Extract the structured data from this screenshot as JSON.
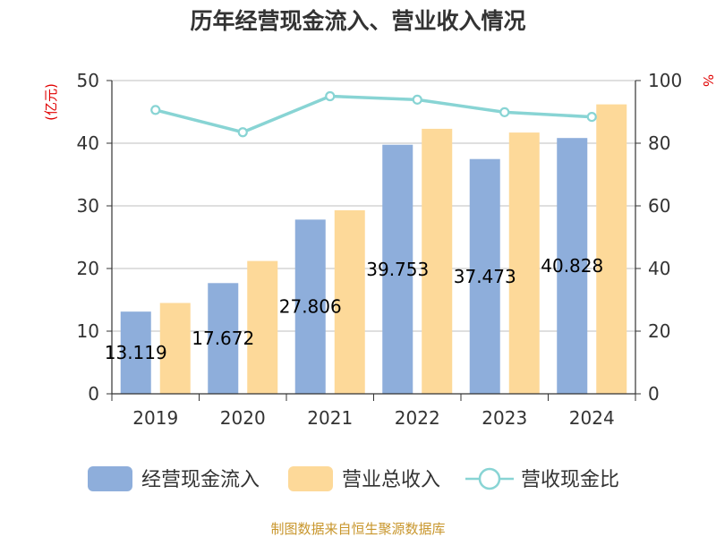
{
  "chart_data": {
    "type": "bar",
    "title": "历年经营现金流入、营业收入情况",
    "categories": [
      "2019",
      "2020",
      "2021",
      "2022",
      "2023",
      "2024"
    ],
    "series": [
      {
        "name": "经营现金流入",
        "type": "bar",
        "axis": "left",
        "color": "#8eaedb",
        "values": [
          13.119,
          17.672,
          27.806,
          39.753,
          37.473,
          40.828
        ],
        "data_labels": [
          "13.119",
          "17.672",
          "27.806",
          "39.753",
          "37.473",
          "40.828"
        ]
      },
      {
        "name": "营业总收入",
        "type": "bar",
        "axis": "left",
        "color": "#fdd999",
        "values": [
          14.5,
          21.2,
          29.3,
          42.3,
          41.7,
          46.2
        ]
      },
      {
        "name": "营收现金比",
        "type": "line",
        "axis": "right",
        "color": "#88d4d4",
        "values": [
          90.6,
          83.5,
          95.0,
          93.9,
          89.9,
          88.4
        ]
      }
    ],
    "y_left": {
      "unit_label": "(亿元)",
      "min": 0,
      "max": 50,
      "ticks": [
        0,
        10,
        20,
        30,
        40,
        50
      ]
    },
    "y_right": {
      "unit_label": "%",
      "min": 0,
      "max": 100,
      "ticks": [
        0,
        20,
        40,
        60,
        80,
        100
      ]
    },
    "grid": true,
    "legend_position": "bottom"
  },
  "footer": {
    "source": "制图数据来自恒生聚源数据库"
  }
}
